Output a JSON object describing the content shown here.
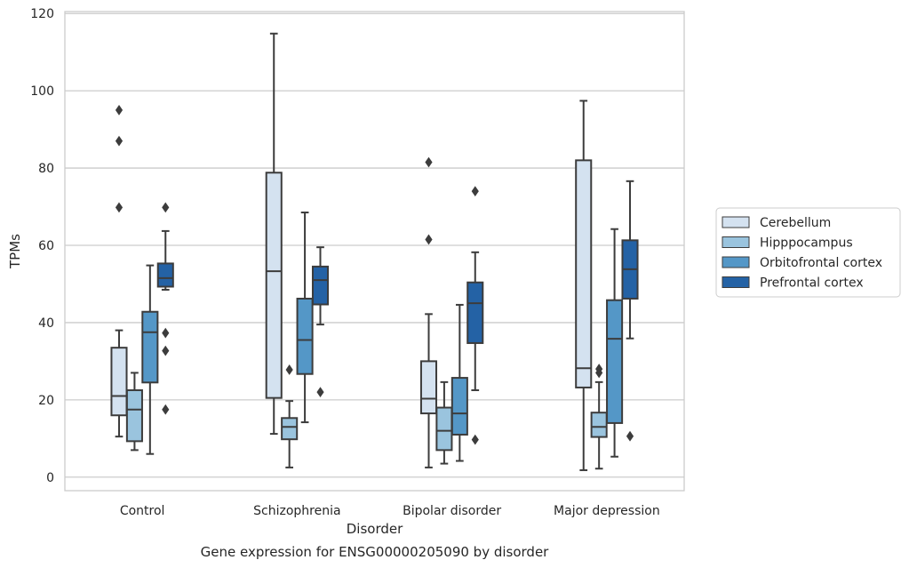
{
  "caption": "Gene expression for ENSG00000205090 by disorder",
  "chart_data": {
    "type": "box",
    "title": "",
    "xlabel": "Disorder",
    "ylabel": "TPMs",
    "ylim": [
      -3.5,
      120.5
    ],
    "yticks": [
      0,
      20,
      40,
      60,
      80,
      100,
      120
    ],
    "grid": "horizontal",
    "legend_position": "right",
    "categories": [
      "Control",
      "Schizophrenia",
      "Bipolar disorder",
      "Major depression"
    ],
    "series": [
      {
        "name": "Cerebellum",
        "color": "#d4e2f0",
        "boxes": [
          {
            "whisker_low": 10.5,
            "q1": 16,
            "median": 21,
            "q3": 33.5,
            "whisker_high": 38,
            "outliers": [
              95,
              87,
              69.8
            ]
          },
          {
            "whisker_low": 11.2,
            "q1": 20.5,
            "median": 53.3,
            "q3": 78.8,
            "whisker_high": 114.8,
            "outliers": []
          },
          {
            "whisker_low": 2.5,
            "q1": 16.5,
            "median": 20.3,
            "q3": 30,
            "whisker_high": 42.2,
            "outliers": [
              81.5,
              61.5
            ]
          },
          {
            "whisker_low": 1.8,
            "q1": 23.2,
            "median": 28.2,
            "q3": 82,
            "whisker_high": 97.4,
            "outliers": []
          }
        ]
      },
      {
        "name": "Hipppocampus",
        "color": "#9ac4de",
        "boxes": [
          {
            "whisker_low": 7,
            "q1": 9.3,
            "median": 17.5,
            "q3": 22.5,
            "whisker_high": 27,
            "outliers": []
          },
          {
            "whisker_low": 2.5,
            "q1": 9.8,
            "median": 13,
            "q3": 15.3,
            "whisker_high": 19.7,
            "outliers": [
              27.8
            ]
          },
          {
            "whisker_low": 3.5,
            "q1": 7,
            "median": 12,
            "q3": 18,
            "whisker_high": 24.6,
            "outliers": []
          },
          {
            "whisker_low": 2.2,
            "q1": 10.4,
            "median": 13,
            "q3": 16.7,
            "whisker_high": 24.6,
            "outliers": [
              28,
              27
            ]
          }
        ]
      },
      {
        "name": "Orbitofrontal cortex",
        "color": "#5497c7",
        "boxes": [
          {
            "whisker_low": 6,
            "q1": 24.5,
            "median": 37.5,
            "q3": 42.8,
            "whisker_high": 54.8,
            "outliers": []
          },
          {
            "whisker_low": 14.2,
            "q1": 26.7,
            "median": 35.5,
            "q3": 46.2,
            "whisker_high": 68.5,
            "outliers": []
          },
          {
            "whisker_low": 4.2,
            "q1": 11,
            "median": 16.5,
            "q3": 25.7,
            "whisker_high": 44.6,
            "outliers": []
          },
          {
            "whisker_low": 5.3,
            "q1": 14,
            "median": 35.8,
            "q3": 45.8,
            "whisker_high": 64.2,
            "outliers": []
          }
        ]
      },
      {
        "name": "Prefrontal cortex",
        "color": "#2462a5",
        "boxes": [
          {
            "whisker_low": 48.5,
            "q1": 49.3,
            "median": 51.5,
            "q3": 55.3,
            "whisker_high": 63.7,
            "outliers": [
              69.8,
              37.3,
              32.7,
              17.5
            ]
          },
          {
            "whisker_low": 39.5,
            "q1": 44.7,
            "median": 51,
            "q3": 54.5,
            "whisker_high": 59.5,
            "outliers": [
              22
            ]
          },
          {
            "whisker_low": 22.5,
            "q1": 34.7,
            "median": 45,
            "q3": 50.4,
            "whisker_high": 58.2,
            "outliers": [
              74,
              9.7
            ]
          },
          {
            "whisker_low": 35.9,
            "q1": 46.2,
            "median": 53.8,
            "q3": 61.3,
            "whisker_high": 76.6,
            "outliers": [
              10.6
            ]
          }
        ]
      }
    ]
  }
}
